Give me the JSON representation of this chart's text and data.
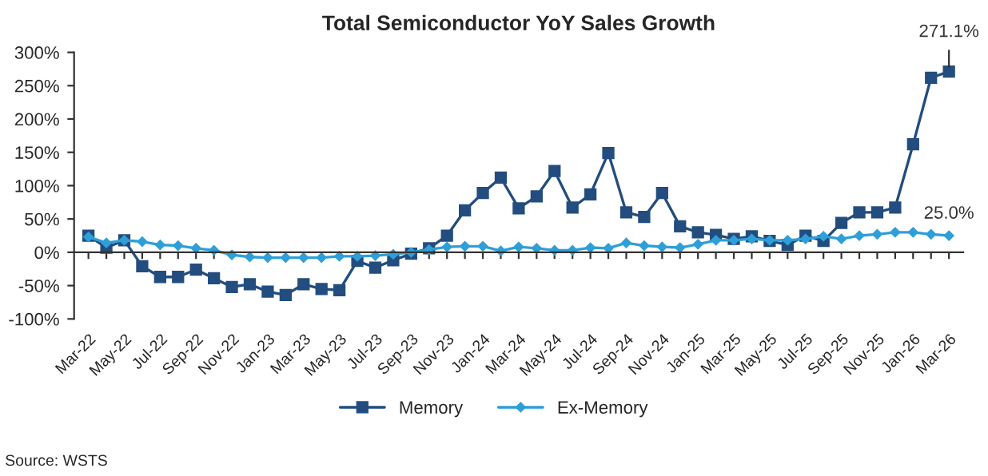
{
  "chart_data": {
    "type": "line",
    "title": "Total Semiconductor YoY Sales Growth",
    "categories": [
      "Mar-22",
      null,
      "May-22",
      null,
      "Jul-22",
      null,
      "Sep-22",
      null,
      "Nov-22",
      null,
      "Jan-23",
      null,
      "Mar-23",
      null,
      "May-23",
      null,
      "Jul-23",
      null,
      "Sep-23",
      null,
      "Nov-23",
      null,
      "Jan-24",
      null,
      "Mar-24",
      null,
      "May-24",
      null,
      "Jul-24",
      null,
      "Sep-24",
      null,
      "Nov-24",
      null,
      "Jan-25",
      null,
      "Mar-25",
      null,
      "May-25",
      null,
      "Jul-25",
      null,
      "Sep-25",
      null,
      "Nov-25",
      null,
      "Jan-26",
      null,
      "Mar-26"
    ],
    "series": [
      {
        "name": "Memory",
        "color": "#234d7e",
        "marker": "square",
        "values": [
          25,
          7,
          18,
          -21,
          -37,
          -37,
          -26,
          -39,
          -52,
          -48,
          -59,
          -64,
          -48,
          -55,
          -57,
          -13,
          -23,
          -12,
          -2,
          6,
          25,
          63,
          89,
          112,
          66,
          84,
          122,
          67,
          87,
          149,
          60,
          53,
          89,
          39,
          30,
          26,
          20,
          24,
          17,
          11,
          25,
          17,
          44,
          60,
          60,
          67,
          162,
          262,
          271.1
        ]
      },
      {
        "name": "Ex-Memory",
        "color": "#2e9fd8",
        "marker": "diamond",
        "values": [
          23,
          14,
          18,
          16,
          11,
          10,
          6,
          3,
          -4,
          -7,
          -8,
          -8,
          -8,
          -8,
          -6,
          -6,
          -5,
          -3,
          0,
          4,
          8,
          9,
          9,
          2,
          8,
          6,
          3,
          3,
          7,
          6,
          14,
          10,
          8,
          7,
          12,
          18,
          18,
          20,
          18,
          18,
          20,
          24,
          20,
          25,
          27,
          30,
          30,
          27,
          25.0
        ]
      }
    ],
    "ylim": [
      -100,
      300
    ],
    "yticks": [
      {
        "value": -100,
        "label": "-100%"
      },
      {
        "value": -50,
        "label": "-50%"
      },
      {
        "value": 0,
        "label": "0%"
      },
      {
        "value": 50,
        "label": "50%"
      },
      {
        "value": 100,
        "label": "100%"
      },
      {
        "value": 150,
        "label": "150%"
      },
      {
        "value": 200,
        "label": "200%"
      },
      {
        "value": 250,
        "label": "250%"
      },
      {
        "value": 300,
        "label": "300%"
      }
    ],
    "legend": "bottom",
    "annotations": [
      {
        "text": "271.1%",
        "x": "Mar-26",
        "y": 271.1
      },
      {
        "text": "25.0%",
        "x": "Mar-26",
        "y": 25.0
      },
      "Source: WSTS"
    ]
  }
}
